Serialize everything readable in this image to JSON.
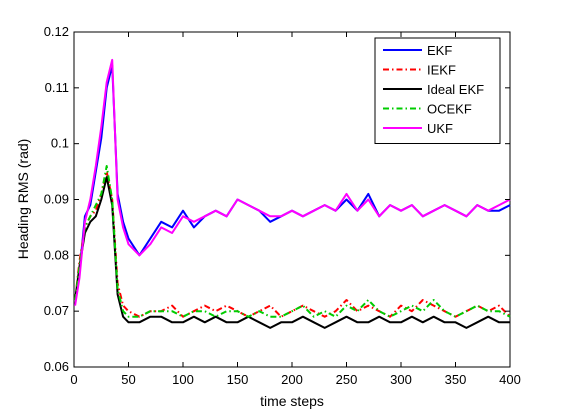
{
  "chart_data": {
    "type": "line",
    "xlabel": "time steps",
    "ylabel": "Heading RMS (rad)",
    "xlim": [
      0,
      400
    ],
    "ylim": [
      0.06,
      0.12
    ],
    "x_ticks": [
      0,
      50,
      100,
      150,
      200,
      250,
      300,
      350,
      400
    ],
    "y_ticks": [
      0.06,
      0.07,
      0.08,
      0.09,
      0.1,
      0.11,
      0.12
    ],
    "x_tick_labels": [
      "0",
      "50",
      "100",
      "150",
      "200",
      "250",
      "300",
      "350",
      "400"
    ],
    "y_tick_labels": [
      "0.06",
      "0.07",
      "0.08",
      "0.09",
      "0.1",
      "0.11",
      "0.12"
    ],
    "grid": false,
    "legend_position": "top-right",
    "series": [
      {
        "name": "EKF",
        "color": "#0000ff",
        "dash": "solid",
        "x": [
          1,
          5,
          10,
          15,
          20,
          25,
          30,
          35,
          40,
          45,
          50,
          60,
          70,
          80,
          90,
          100,
          110,
          120,
          130,
          140,
          150,
          160,
          170,
          180,
          190,
          200,
          210,
          220,
          230,
          240,
          250,
          260,
          270,
          280,
          290,
          300,
          310,
          320,
          330,
          340,
          350,
          360,
          370,
          380,
          390,
          400
        ],
        "y": [
          0.072,
          0.077,
          0.087,
          0.089,
          0.095,
          0.101,
          0.11,
          0.114,
          0.091,
          0.086,
          0.083,
          0.08,
          0.083,
          0.086,
          0.085,
          0.088,
          0.085,
          0.087,
          0.088,
          0.087,
          0.09,
          0.089,
          0.088,
          0.086,
          0.087,
          0.088,
          0.087,
          0.088,
          0.089,
          0.088,
          0.09,
          0.088,
          0.091,
          0.087,
          0.089,
          0.088,
          0.089,
          0.087,
          0.088,
          0.089,
          0.088,
          0.087,
          0.089,
          0.088,
          0.088,
          0.089
        ]
      },
      {
        "name": "IEKF",
        "color": "#ff0000",
        "dash": "dashdot",
        "x": [
          1,
          5,
          10,
          15,
          20,
          25,
          30,
          35,
          40,
          45,
          50,
          60,
          70,
          80,
          90,
          100,
          110,
          120,
          130,
          140,
          150,
          160,
          170,
          180,
          190,
          200,
          210,
          220,
          230,
          240,
          250,
          260,
          270,
          280,
          290,
          300,
          310,
          320,
          330,
          340,
          350,
          360,
          370,
          380,
          390,
          400
        ],
        "y": [
          0.072,
          0.079,
          0.085,
          0.087,
          0.088,
          0.091,
          0.095,
          0.09,
          0.075,
          0.071,
          0.07,
          0.069,
          0.07,
          0.07,
          0.071,
          0.069,
          0.07,
          0.071,
          0.07,
          0.071,
          0.07,
          0.069,
          0.07,
          0.071,
          0.069,
          0.07,
          0.071,
          0.07,
          0.069,
          0.07,
          0.072,
          0.07,
          0.071,
          0.07,
          0.069,
          0.071,
          0.07,
          0.072,
          0.071,
          0.07,
          0.069,
          0.07,
          0.071,
          0.07,
          0.071,
          0.069
        ]
      },
      {
        "name": "Ideal EKF",
        "color": "#000000",
        "dash": "solid",
        "x": [
          1,
          5,
          10,
          15,
          20,
          25,
          30,
          35,
          40,
          45,
          50,
          60,
          70,
          80,
          90,
          100,
          110,
          120,
          130,
          140,
          150,
          160,
          170,
          180,
          190,
          200,
          210,
          220,
          230,
          240,
          250,
          260,
          270,
          280,
          290,
          300,
          310,
          320,
          330,
          340,
          350,
          360,
          370,
          380,
          390,
          400
        ],
        "y": [
          0.072,
          0.078,
          0.084,
          0.086,
          0.087,
          0.09,
          0.094,
          0.089,
          0.073,
          0.069,
          0.068,
          0.068,
          0.069,
          0.069,
          0.068,
          0.068,
          0.069,
          0.068,
          0.069,
          0.068,
          0.068,
          0.069,
          0.068,
          0.067,
          0.068,
          0.068,
          0.069,
          0.068,
          0.067,
          0.068,
          0.069,
          0.068,
          0.068,
          0.069,
          0.068,
          0.068,
          0.069,
          0.068,
          0.069,
          0.068,
          0.068,
          0.067,
          0.068,
          0.069,
          0.068,
          0.068
        ]
      },
      {
        "name": "OCEKF",
        "color": "#00cc00",
        "dash": "dashdot",
        "x": [
          1,
          5,
          10,
          15,
          20,
          25,
          30,
          35,
          40,
          45,
          50,
          60,
          70,
          80,
          90,
          100,
          110,
          120,
          130,
          140,
          150,
          160,
          170,
          180,
          190,
          200,
          210,
          220,
          230,
          240,
          250,
          260,
          270,
          280,
          290,
          300,
          310,
          320,
          330,
          340,
          350,
          360,
          370,
          380,
          390,
          400
        ],
        "y": [
          0.072,
          0.078,
          0.085,
          0.087,
          0.089,
          0.091,
          0.096,
          0.09,
          0.074,
          0.07,
          0.069,
          0.069,
          0.07,
          0.07,
          0.07,
          0.069,
          0.07,
          0.07,
          0.069,
          0.07,
          0.07,
          0.069,
          0.07,
          0.069,
          0.069,
          0.07,
          0.071,
          0.069,
          0.07,
          0.069,
          0.071,
          0.07,
          0.072,
          0.07,
          0.069,
          0.07,
          0.071,
          0.07,
          0.072,
          0.07,
          0.069,
          0.07,
          0.071,
          0.07,
          0.07,
          0.069
        ]
      },
      {
        "name": "UKF",
        "color": "#ff00ff",
        "dash": "solid",
        "x": [
          1,
          5,
          10,
          15,
          20,
          25,
          30,
          35,
          40,
          45,
          50,
          60,
          70,
          80,
          90,
          100,
          110,
          120,
          130,
          140,
          150,
          160,
          170,
          180,
          190,
          200,
          210,
          220,
          230,
          240,
          250,
          260,
          270,
          280,
          290,
          300,
          310,
          320,
          330,
          340,
          350,
          360,
          370,
          380,
          390,
          400
        ],
        "y": [
          0.071,
          0.076,
          0.086,
          0.09,
          0.096,
          0.103,
          0.111,
          0.115,
          0.09,
          0.085,
          0.082,
          0.08,
          0.082,
          0.085,
          0.084,
          0.087,
          0.086,
          0.087,
          0.088,
          0.087,
          0.09,
          0.089,
          0.088,
          0.087,
          0.087,
          0.088,
          0.087,
          0.088,
          0.089,
          0.088,
          0.091,
          0.088,
          0.09,
          0.087,
          0.089,
          0.088,
          0.089,
          0.087,
          0.088,
          0.089,
          0.088,
          0.087,
          0.089,
          0.088,
          0.089,
          0.09
        ]
      }
    ]
  }
}
